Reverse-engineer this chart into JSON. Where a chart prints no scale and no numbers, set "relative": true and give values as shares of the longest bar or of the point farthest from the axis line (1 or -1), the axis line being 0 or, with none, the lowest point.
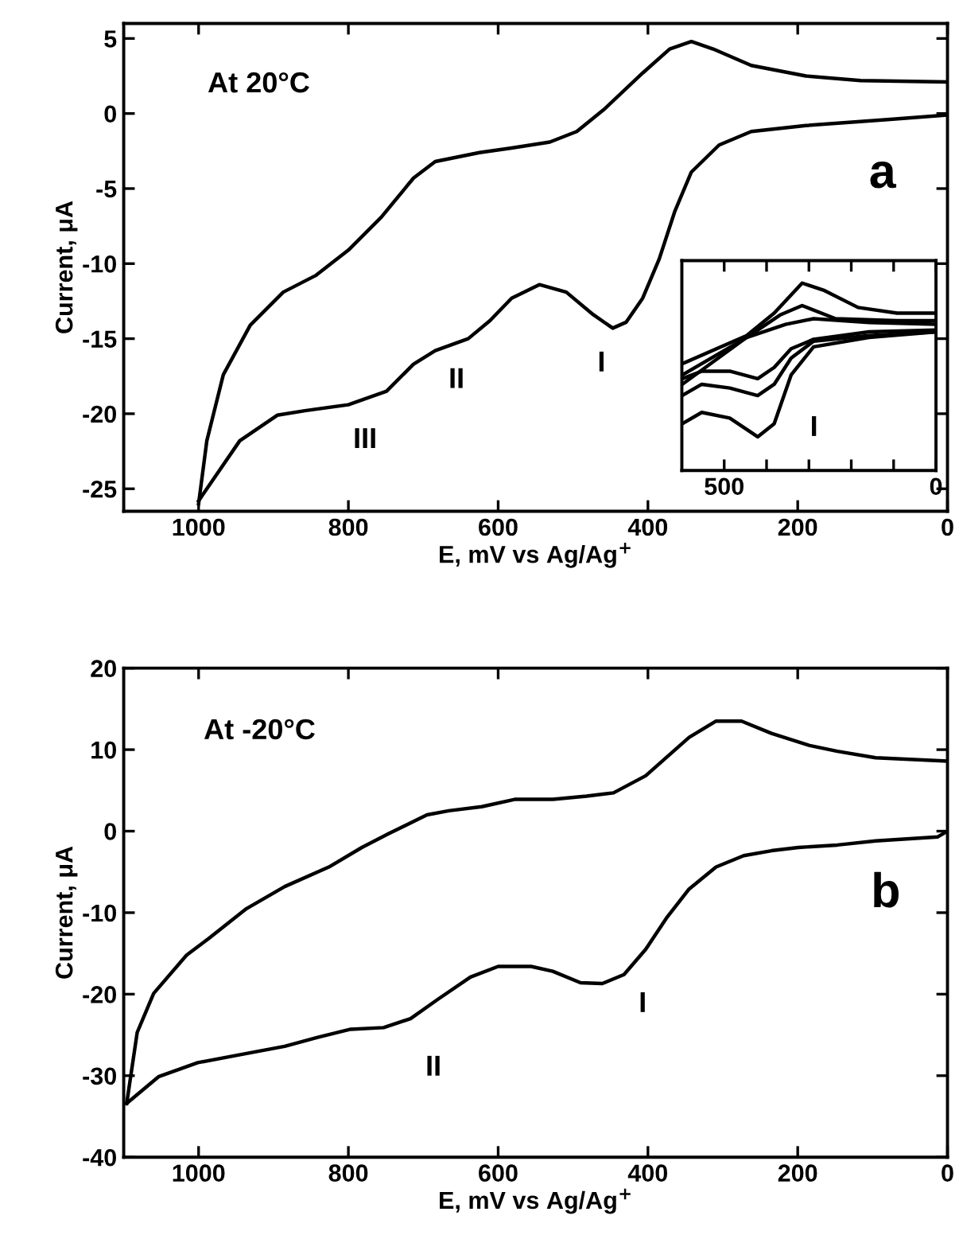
{
  "chart_data": [
    {
      "type": "line",
      "xlabel": "E, mV vs Ag/Ag$^{+}$",
      "ylabel": "Current, μA",
      "xlim": [
        1100,
        0
      ],
      "ylim": [
        -26.5,
        6
      ],
      "xticks": [
        1000,
        800,
        600,
        400,
        200,
        0
      ],
      "yticks": [
        5,
        0,
        -5,
        -10,
        -15,
        -20,
        -25
      ],
      "series": [
        {
          "color": "#000000",
          "x": [
            1000,
            989,
            967,
            931,
            887,
            844,
            800,
            756,
            713,
            684,
            625,
            582,
            531,
            495,
            458,
            407,
            371,
            342,
            313,
            262,
            189,
            116,
            0
          ],
          "values": [
            -26,
            -21.8,
            -17.4,
            -14.1,
            -11.9,
            -10.8,
            -9.1,
            -6.9,
            -4.3,
            -3.2,
            -2.6,
            -2.3,
            -1.9,
            -1.2,
            0.3,
            2.7,
            4.3,
            4.8,
            4.3,
            3.2,
            2.5,
            2.2,
            2.1
          ]
        },
        {
          "color": "#000000",
          "x": [
            0,
            80,
            189,
            262,
            305,
            342,
            364,
            385,
            407,
            429,
            447,
            473,
            509,
            545,
            582,
            611,
            640,
            684,
            713,
            749,
            800,
            858,
            895,
            945,
            1000
          ],
          "values": [
            -0.1,
            -0.4,
            -0.8,
            -1.2,
            -2.1,
            -3.9,
            -6.5,
            -9.7,
            -12.3,
            -13.9,
            -14.3,
            -13.4,
            -11.9,
            -11.4,
            -12.3,
            -13.8,
            -15.0,
            -15.8,
            -16.7,
            -18.5,
            -19.4,
            -19.8,
            -20.1,
            -21.8,
            -25.8
          ]
        }
      ],
      "annotations": [
        "At 20°C",
        "a",
        "III",
        "II",
        "I"
      ]
    },
    {
      "type": "line",
      "relative": true,
      "tick_labels": "x",
      "xlim": [
        600,
        0
      ],
      "xticks": [
        500,
        {
          "value": 400,
          "label": null
        },
        {
          "value": 300,
          "label": null
        },
        {
          "value": 200,
          "label": null
        },
        {
          "value": 100,
          "label": null
        },
        0
      ],
      "series": [
        {
          "color": "#000000",
          "x": [
            599,
            447,
            382,
            316,
            263,
            184,
            92,
            0
          ],
          "values": [
            0.57,
            0.72,
            0.84,
            1.0,
            0.96,
            0.87,
            0.84,
            0.84
          ]
        },
        {
          "color": "#000000",
          "x": [
            599,
            447,
            368,
            316,
            237,
            92,
            0
          ],
          "values": [
            0.51,
            0.71,
            0.83,
            0.88,
            0.81,
            0.8,
            0.8
          ]
        },
        {
          "color": "#000000",
          "x": [
            599,
            447,
            355,
            289,
            158,
            0
          ],
          "values": [
            0.46,
            0.71,
            0.78,
            0.81,
            0.79,
            0.78
          ]
        },
        {
          "color": "#000000",
          "x": [
            599,
            553,
            487,
            421,
            382,
            342,
            289,
            158,
            0
          ],
          "values": [
            0.25,
            0.31,
            0.28,
            0.18,
            0.25,
            0.51,
            0.66,
            0.71,
            0.74
          ]
        },
        {
          "color": "#000000",
          "x": [
            599,
            553,
            487,
            421,
            382,
            342,
            289,
            158,
            0
          ],
          "values": [
            0.4,
            0.46,
            0.44,
            0.4,
            0.46,
            0.6,
            0.69,
            0.72,
            0.74
          ]
        },
        {
          "color": "#000000",
          "x": [
            599,
            553,
            487,
            421,
            382,
            342,
            289,
            158,
            0
          ],
          "values": [
            0.49,
            0.53,
            0.53,
            0.49,
            0.55,
            0.65,
            0.7,
            0.74,
            0.75
          ]
        }
      ],
      "annotations": [
        "I"
      ]
    },
    {
      "type": "line",
      "xlabel": "E, mV vs Ag/Ag$^{+}$",
      "ylabel": "Current, μA",
      "xlim": [
        1100,
        0
      ],
      "ylim": [
        -40,
        20
      ],
      "xticks": [
        1000,
        800,
        600,
        400,
        200,
        0
      ],
      "yticks": [
        20,
        10,
        0,
        -10,
        -20,
        -30,
        -40
      ],
      "series": [
        {
          "color": "#000000",
          "x": [
            1096,
            1082,
            1060,
            1016,
            987,
            936,
            885,
            826,
            782,
            746,
            695,
            666,
            622,
            578,
            527,
            482,
            446,
            403,
            345,
            309,
            275,
            235,
            184,
            147,
            96,
            0
          ],
          "values": [
            -33.4,
            -24.7,
            -19.9,
            -15.2,
            -13.2,
            -9.5,
            -6.8,
            -4.4,
            -2.0,
            -0.3,
            2.0,
            2.5,
            3.0,
            3.9,
            3.9,
            4.3,
            4.7,
            6.8,
            11.5,
            13.5,
            13.5,
            12.0,
            10.5,
            9.8,
            9.0,
            8.6
          ]
        },
        {
          "color": "#000000",
          "x": [
            0,
            13,
            96,
            147,
            199,
            235,
            272,
            309,
            345,
            374,
            403,
            432,
            461,
            490,
            527,
            556,
            600,
            637,
            680,
            717,
            753,
            797,
            841,
            885,
            943,
            1001,
            1053,
            1096
          ],
          "values": [
            0,
            -0.7,
            -1.2,
            -1.7,
            -2.0,
            -2.4,
            -3.0,
            -4.4,
            -7.1,
            -10.5,
            -14.5,
            -17.6,
            -18.7,
            -18.6,
            -17.2,
            -16.6,
            -16.6,
            -17.9,
            -20.6,
            -23.0,
            -24.1,
            -24.3,
            -25.3,
            -26.4,
            -27.4,
            -28.4,
            -30.1,
            -33.4
          ]
        }
      ],
      "annotations": [
        "At -20°C",
        "b",
        "I",
        "II"
      ]
    }
  ]
}
